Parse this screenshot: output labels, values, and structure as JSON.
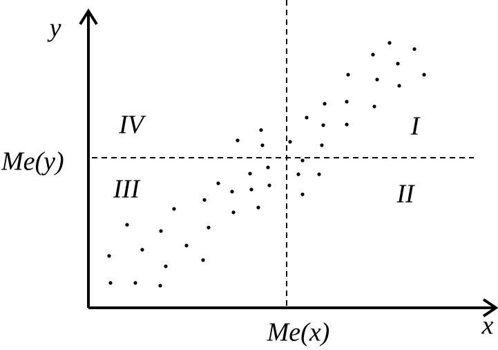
{
  "axes": {
    "x": "x",
    "y": "y"
  },
  "medians": {
    "x": "Me(x)",
    "y": "Me(y)"
  },
  "quadrants": {
    "I": "I",
    "II": "II",
    "III": "III",
    "IV": "IV"
  }
}
